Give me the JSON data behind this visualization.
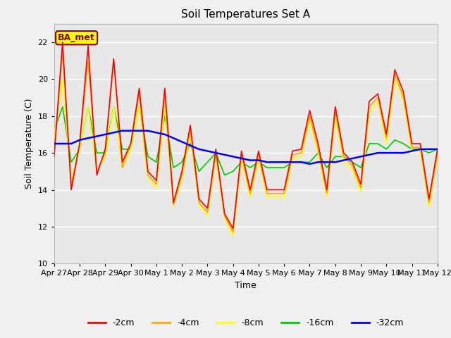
{
  "title": "Soil Temperatures Set A",
  "xlabel": "Time",
  "ylabel": "Soil Temperature (C)",
  "xlim": [
    0,
    15
  ],
  "ylim": [
    10,
    23
  ],
  "yticks": [
    10,
    12,
    14,
    16,
    18,
    20,
    22
  ],
  "xtick_labels": [
    "Apr 27",
    "Apr 28",
    "Apr 29",
    "Apr 30",
    "May 1",
    "May 2",
    "May 3",
    "May 4",
    "May 5",
    "May 6",
    "May 7",
    "May 8",
    "May 9",
    "May 10",
    "May 11",
    "May 12"
  ],
  "annotation_text": "BA_met",
  "annotation_color": "#8B0000",
  "annotation_bg": "#FFFF00",
  "plot_bg_color": "#E8E8E8",
  "fig_bg_color": "#F0F0F0",
  "grid_color": "#FFFFFF",
  "lines": {
    "d2": {
      "label": "-2cm",
      "color": "#FF0000",
      "lw": 1.2
    },
    "d4": {
      "label": "-4cm",
      "color": "#FFA500",
      "lw": 1.2
    },
    "d8": {
      "label": "-8cm",
      "color": "#FFFF00",
      "lw": 1.2
    },
    "d16": {
      "label": "-16cm",
      "color": "#00CC00",
      "lw": 1.2
    },
    "d32": {
      "label": "-32cm",
      "color": "#0000FF",
      "lw": 1.8
    }
  },
  "t": [
    0.0,
    0.33,
    0.67,
    1.0,
    1.33,
    1.67,
    2.0,
    2.33,
    2.67,
    3.0,
    3.33,
    3.67,
    4.0,
    4.33,
    4.67,
    5.0,
    5.33,
    5.67,
    6.0,
    6.33,
    6.67,
    7.0,
    7.33,
    7.67,
    8.0,
    8.33,
    8.67,
    9.0,
    9.33,
    9.67,
    10.0,
    10.33,
    10.67,
    11.0,
    11.33,
    11.67,
    12.0,
    12.33,
    12.67,
    13.0,
    13.33,
    13.67,
    14.0,
    14.33,
    14.67,
    15.0
  ],
  "d2": [
    15.8,
    22.0,
    14.0,
    16.5,
    21.8,
    14.8,
    16.2,
    21.1,
    15.5,
    16.5,
    19.5,
    15.0,
    14.5,
    19.5,
    13.3,
    15.0,
    17.5,
    13.5,
    13.0,
    16.2,
    12.7,
    11.9,
    16.1,
    14.0,
    16.1,
    14.0,
    14.0,
    14.0,
    16.1,
    16.2,
    18.3,
    16.5,
    14.0,
    18.5,
    16.0,
    15.5,
    14.3,
    18.8,
    19.2,
    17.0,
    20.5,
    19.3,
    16.5,
    16.5,
    13.5,
    16.2
  ],
  "d4": [
    16.0,
    21.5,
    14.2,
    16.5,
    21.0,
    15.0,
    16.0,
    21.0,
    15.2,
    16.5,
    19.2,
    14.8,
    14.3,
    19.2,
    13.2,
    14.8,
    17.2,
    13.3,
    12.8,
    16.0,
    12.6,
    11.7,
    15.9,
    13.8,
    15.9,
    13.8,
    13.8,
    13.8,
    15.9,
    16.0,
    18.0,
    16.2,
    13.8,
    18.2,
    15.8,
    15.3,
    14.1,
    18.5,
    19.0,
    16.8,
    20.3,
    19.0,
    16.3,
    16.3,
    13.3,
    16.0
  ],
  "d8": [
    16.8,
    20.0,
    14.5,
    16.2,
    18.5,
    15.0,
    15.8,
    18.5,
    15.2,
    16.2,
    18.5,
    14.6,
    14.1,
    18.5,
    13.1,
    14.6,
    17.0,
    13.2,
    12.6,
    15.8,
    12.5,
    11.5,
    15.7,
    13.6,
    15.7,
    13.6,
    13.6,
    13.6,
    15.7,
    15.8,
    17.8,
    16.0,
    13.6,
    17.9,
    15.5,
    15.1,
    13.9,
    18.2,
    18.8,
    16.5,
    20.0,
    18.8,
    16.1,
    16.1,
    13.1,
    15.8
  ],
  "d16": [
    17.2,
    18.5,
    15.5,
    16.2,
    18.5,
    16.0,
    16.0,
    18.5,
    16.2,
    16.2,
    18.5,
    15.8,
    15.5,
    18.0,
    15.2,
    15.5,
    16.5,
    15.0,
    15.5,
    16.0,
    14.8,
    15.0,
    15.5,
    15.2,
    15.5,
    15.2,
    15.2,
    15.2,
    15.5,
    15.5,
    15.5,
    16.0,
    15.2,
    15.8,
    15.8,
    15.5,
    15.2,
    16.5,
    16.5,
    16.2,
    16.7,
    16.5,
    16.2,
    16.2,
    16.0,
    16.2
  ],
  "d32": [
    16.5,
    16.5,
    16.5,
    16.7,
    16.8,
    16.9,
    17.0,
    17.1,
    17.2,
    17.2,
    17.2,
    17.2,
    17.1,
    17.0,
    16.8,
    16.6,
    16.4,
    16.2,
    16.1,
    16.0,
    15.9,
    15.8,
    15.7,
    15.6,
    15.6,
    15.5,
    15.5,
    15.5,
    15.5,
    15.5,
    15.4,
    15.5,
    15.5,
    15.5,
    15.6,
    15.7,
    15.8,
    15.9,
    16.0,
    16.0,
    16.0,
    16.0,
    16.1,
    16.2,
    16.2,
    16.2
  ]
}
